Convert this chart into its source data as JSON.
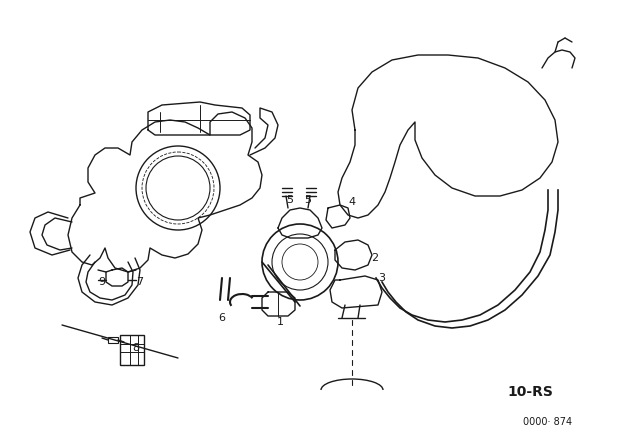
{
  "background_color": "#ffffff",
  "line_color": "#1a1a1a",
  "label_10rs": "10-RS",
  "label_code": "0000· 874",
  "figsize": [
    6.4,
    4.48
  ],
  "dpi": 100
}
